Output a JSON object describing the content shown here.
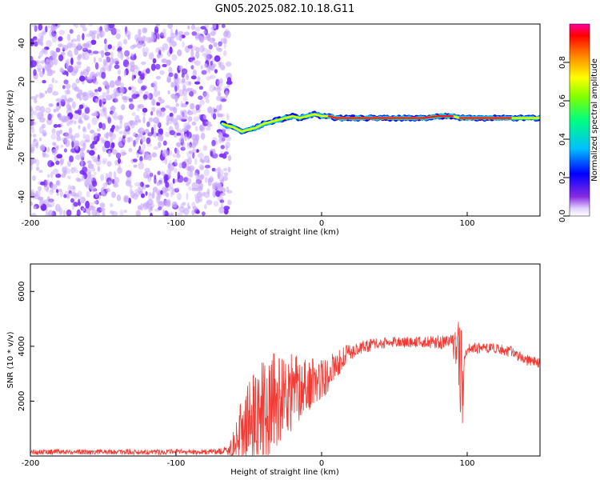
{
  "title": "GN05.2025.082.10.18.G11",
  "colors": {
    "noise": "#7a2cff",
    "noise_light": "#c7a6ff",
    "snr_line": "#f03a33",
    "frame": "#000000"
  },
  "chart_data": [
    {
      "type": "heatmap",
      "xlabel": "Height of straight line (km)",
      "ylabel": "Frequency (Hz)",
      "xlim": [
        -200,
        150
      ],
      "ylim": [
        -50,
        50
      ],
      "xticks": [
        -200,
        -100,
        0,
        100
      ],
      "yticks": [
        -40,
        -20,
        0,
        20,
        40
      ],
      "colorbar": {
        "label": "Normalized spectral amplitude",
        "range": [
          0.0,
          1.0
        ],
        "ticks": [
          0.0,
          0.2,
          0.4,
          0.6,
          0.8
        ],
        "colormap": [
          "#ffffff",
          "#8a2be2",
          "#0000ff",
          "#00bfff",
          "#00ff7f",
          "#7fff00",
          "#ffff00",
          "#ff7f00",
          "#ff0000",
          "#ff00a0"
        ]
      },
      "noise_region_x": [
        -200,
        -63
      ],
      "signal_trace": {
        "x": [
          -68,
          -64,
          -60,
          -55,
          -50,
          -45,
          -40,
          -35,
          -30,
          -25,
          -20,
          -15,
          -10,
          -5,
          0,
          5,
          10,
          20,
          30,
          40,
          50,
          60,
          70,
          80,
          85,
          90,
          95,
          100,
          110,
          120,
          130,
          140,
          150
        ],
        "frequency": [
          -2,
          -3,
          -4,
          -6,
          -5,
          -4,
          -2,
          -1,
          0,
          1,
          2,
          1,
          2,
          3,
          2,
          2,
          1,
          1,
          1,
          1,
          1,
          1,
          1,
          2,
          2,
          2,
          1,
          1,
          1,
          1,
          1,
          1,
          1
        ],
        "peak_amplitude": [
          0.4,
          0.5,
          0.6,
          0.6,
          0.6,
          0.6,
          0.6,
          0.6,
          0.7,
          0.7,
          0.7,
          0.7,
          0.75,
          0.8,
          0.8,
          0.85,
          0.9,
          0.95,
          0.95,
          0.95,
          0.95,
          0.95,
          0.95,
          0.9,
          0.9,
          0.8,
          0.9,
          0.95,
          0.95,
          0.95,
          0.7,
          0.6,
          0.6
        ]
      }
    },
    {
      "type": "line",
      "xlabel": "Height of straight line (km)",
      "ylabel": "SNR (10 * v/v)",
      "xlim": [
        -200,
        150
      ],
      "ylim": [
        0,
        7000
      ],
      "xticks": [
        -200,
        -100,
        0,
        100
      ],
      "yticks": [
        2000,
        4000,
        6000
      ],
      "series": [
        {
          "x": [
            -200,
            -180,
            -160,
            -140,
            -120,
            -100,
            -80,
            -65,
            -58,
            -55,
            -50,
            -45,
            -40,
            -35,
            -30,
            -25,
            -20,
            -15,
            -10,
            -5,
            0,
            5,
            10,
            15,
            20,
            25,
            30,
            40,
            50,
            60,
            70,
            80,
            90,
            94,
            96,
            97,
            98,
            100,
            110,
            120,
            130,
            140,
            150
          ],
          "y": [
            150,
            150,
            150,
            150,
            150,
            150,
            150,
            180,
            500,
            900,
            1200,
            1600,
            1500,
            1900,
            2000,
            2200,
            2300,
            2500,
            2600,
            2700,
            2800,
            3000,
            3300,
            3600,
            3800,
            3900,
            4000,
            4100,
            4150,
            4150,
            4150,
            4150,
            4150,
            3600,
            3000,
            1500,
            3800,
            3900,
            3950,
            3900,
            3800,
            3500,
            3400
          ],
          "noise_amplitude": [
            100,
            100,
            100,
            100,
            100,
            100,
            100,
            150,
            800,
            1200,
            1500,
            1800,
            2000,
            1800,
            1800,
            1500,
            1500,
            1200,
            1000,
            900,
            800,
            700,
            500,
            400,
            300,
            250,
            250,
            200,
            200,
            200,
            200,
            250,
            300,
            1500,
            2500,
            2000,
            500,
            200,
            200,
            200,
            200,
            200,
            200
          ]
        }
      ]
    }
  ]
}
